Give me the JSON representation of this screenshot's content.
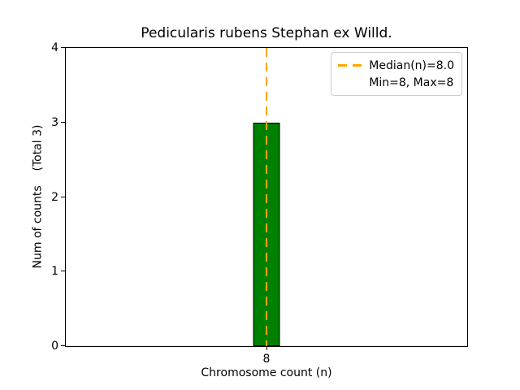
{
  "chart_data": {
    "type": "bar",
    "title": "Pedicularis rubens Stephan ex Willd.",
    "xlabel": "Chromosome count (n)",
    "ylabel": "Num of counts    (Total 3)",
    "categories": [
      "8"
    ],
    "values": [
      3
    ],
    "total_label": "(Total 3)",
    "ylim": [
      0,
      4
    ],
    "yticks": [
      0,
      1,
      2,
      3,
      4
    ],
    "grid": false,
    "bar_color": "#008000",
    "bar_edge_color": "#000000",
    "median_line": {
      "x": 8.0,
      "color": "#ffa500",
      "style": "dashed"
    },
    "legend": {
      "position": "upper right",
      "entries": [
        {
          "label": "Median(n)=8.0",
          "marker": "dashed-line",
          "color": "#ffa500"
        },
        {
          "label": "Min=8, Max=8",
          "marker": "none",
          "color": ""
        }
      ]
    },
    "stats": {
      "median": 8.0,
      "min": 8,
      "max": 8,
      "total": 3
    }
  }
}
